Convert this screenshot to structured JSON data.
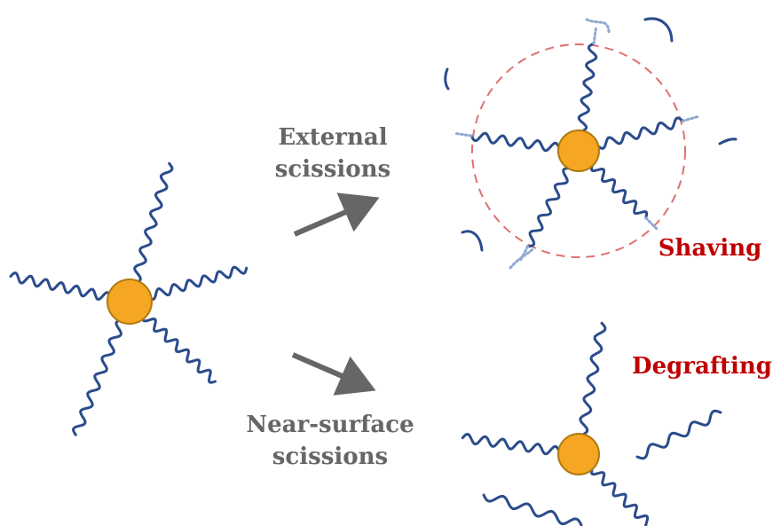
{
  "labels": {
    "external": [
      "External",
      "scissions"
    ],
    "near_surface": [
      "Near-surface",
      "scissions"
    ],
    "shaving": "Shaving",
    "degrafting": "Degrafting"
  },
  "colors": {
    "chain": "#2B4C8C",
    "cut_segment": "#8FA8D0",
    "particle_fill": "#F5A623",
    "particle_stroke": "#B07A10",
    "arrow": "#666666",
    "label_gray": "#666666",
    "label_red": "#C00000",
    "shave_circle": "#E07070"
  },
  "panels": [
    {
      "id": "initial-star",
      "arms": 5,
      "caption": ""
    },
    {
      "id": "shaved-star",
      "arms": 5,
      "cut_fragments": 6,
      "caption_key": "shaving"
    },
    {
      "id": "degrafted-star",
      "attached_arms": 3,
      "detached_chains": 2,
      "caption_key": "degrafting"
    }
  ]
}
